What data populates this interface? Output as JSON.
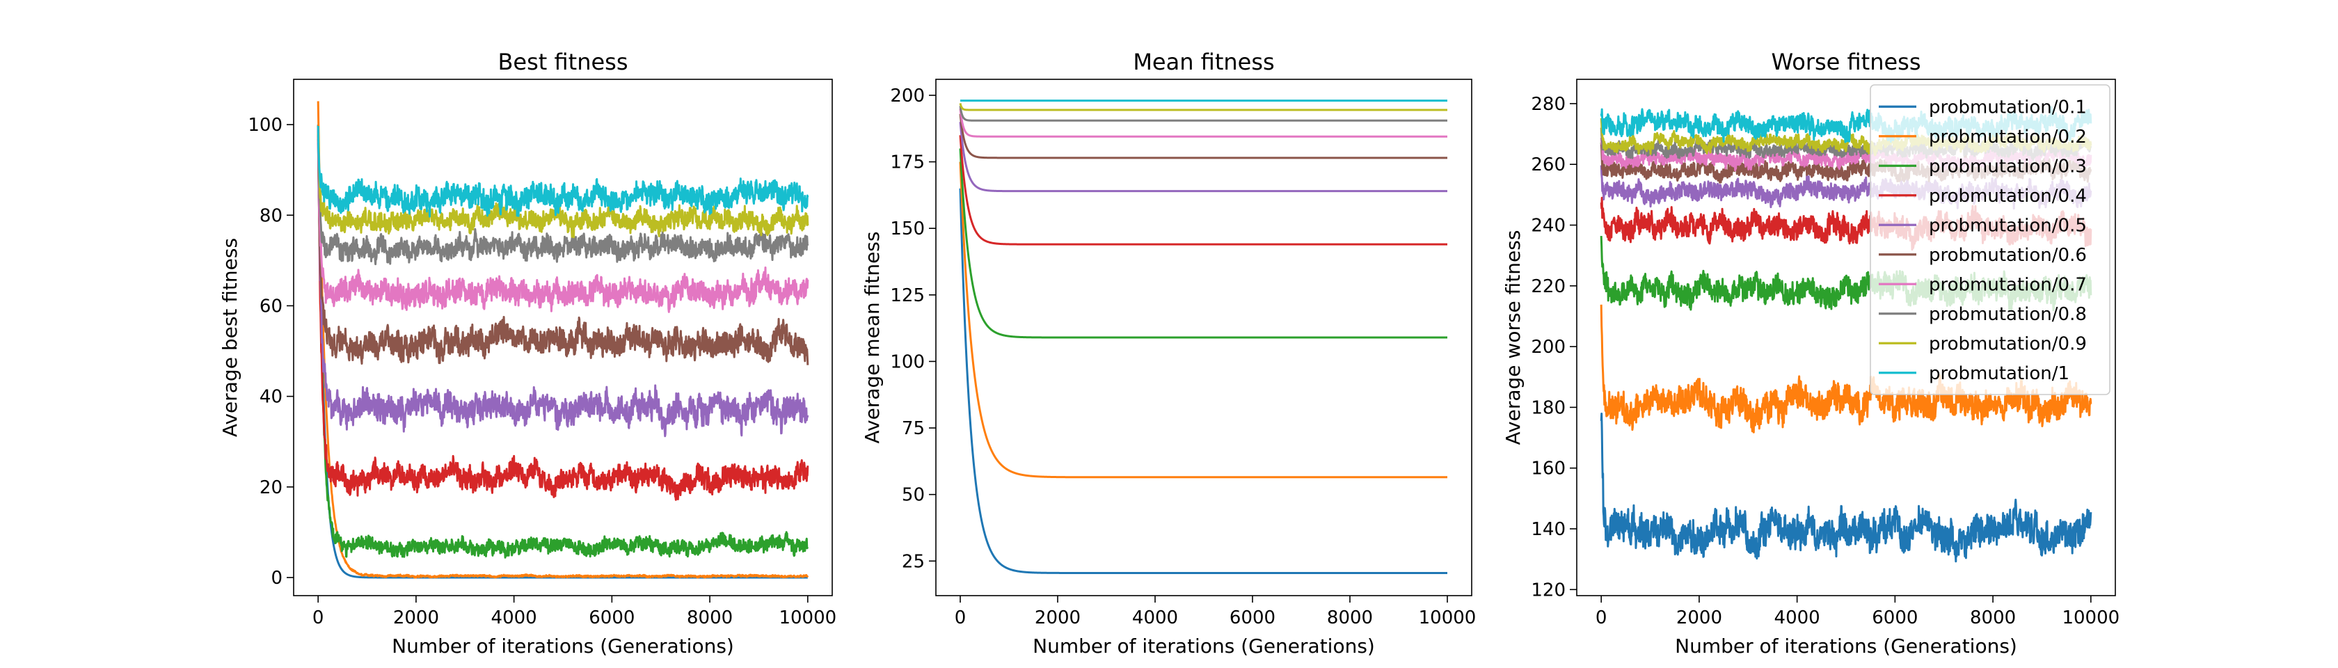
{
  "palette": [
    "#1f77b4",
    "#ff7f0e",
    "#2ca02c",
    "#d62728",
    "#9467bd",
    "#8c564b",
    "#e377c2",
    "#7f7f7f",
    "#bcbd22",
    "#17becf"
  ],
  "chart_data": [
    {
      "type": "line",
      "title": "Best fitness",
      "xlabel": "Number of iterations (Generations)",
      "ylabel": "Average best fitness",
      "xlim": [
        -500,
        10500
      ],
      "ylim": [
        -4,
        110
      ],
      "xticks": [
        0,
        2000,
        4000,
        6000,
        8000,
        10000
      ],
      "yticks": [
        0,
        20,
        40,
        60,
        80,
        100
      ],
      "legend": "none",
      "grid": false,
      "series": [
        {
          "name": "probmutation/0.1",
          "start": 100,
          "plateau": 0,
          "tau": 120,
          "noise": 0
        },
        {
          "name": "probmutation/0.2",
          "start": 105,
          "plateau": 0.3,
          "tau": 160,
          "noise": 0.2
        },
        {
          "name": "probmutation/0.3",
          "start": 100,
          "plateau": 7,
          "tau": 90,
          "noise": 1.6
        },
        {
          "name": "probmutation/0.4",
          "start": 98,
          "plateau": 22,
          "tau": 70,
          "noise": 2.5
        },
        {
          "name": "probmutation/0.5",
          "start": 98,
          "plateau": 37,
          "tau": 60,
          "noise": 3.2
        },
        {
          "name": "probmutation/0.6",
          "start": 98,
          "plateau": 52,
          "tau": 50,
          "noise": 3.0
        },
        {
          "name": "probmutation/0.7",
          "start": 98,
          "plateau": 63,
          "tau": 45,
          "noise": 2.8
        },
        {
          "name": "probmutation/0.8",
          "start": 98,
          "plateau": 73,
          "tau": 40,
          "noise": 2.4
        },
        {
          "name": "probmutation/0.9",
          "start": 98,
          "plateau": 79,
          "tau": 35,
          "noise": 2.2
        },
        {
          "name": "probmutation/1",
          "start": 98,
          "plateau": 84,
          "tau": 30,
          "noise": 2.6
        }
      ]
    },
    {
      "type": "line",
      "title": "Mean fitness",
      "xlabel": "Number of iterations (Generations)",
      "ylabel": "Average mean fitness",
      "xlim": [
        -500,
        10500
      ],
      "ylim": [
        12,
        206
      ],
      "xticks": [
        0,
        2000,
        4000,
        6000,
        8000,
        10000
      ],
      "yticks": [
        25,
        50,
        75,
        100,
        125,
        150,
        175,
        200
      ],
      "legend": "none",
      "grid": false,
      "series": [
        {
          "name": "probmutation/0.1",
          "start": 165,
          "plateau": 20.5,
          "tau": 220,
          "noise": 0
        },
        {
          "name": "probmutation/0.2",
          "start": 175,
          "plateau": 56.5,
          "tau": 260,
          "noise": 0
        },
        {
          "name": "probmutation/0.3",
          "start": 180,
          "plateau": 109,
          "tau": 200,
          "noise": 0
        },
        {
          "name": "probmutation/0.4",
          "start": 185,
          "plateau": 144,
          "tau": 150,
          "noise": 0
        },
        {
          "name": "probmutation/0.5",
          "start": 190,
          "plateau": 164,
          "tau": 120,
          "noise": 0
        },
        {
          "name": "probmutation/0.6",
          "start": 193,
          "plateau": 176.5,
          "tau": 90,
          "noise": 0
        },
        {
          "name": "probmutation/0.7",
          "start": 195,
          "plateau": 184.5,
          "tau": 60,
          "noise": 0
        },
        {
          "name": "probmutation/0.8",
          "start": 196,
          "plateau": 190.5,
          "tau": 40,
          "noise": 0
        },
        {
          "name": "probmutation/0.9",
          "start": 197,
          "plateau": 194.5,
          "tau": 30,
          "noise": 0
        },
        {
          "name": "probmutation/1",
          "start": 198,
          "plateau": 198,
          "tau": 20,
          "noise": 0
        }
      ]
    },
    {
      "type": "line",
      "title": "Worse fitness",
      "xlabel": "Number of iterations (Generations)",
      "ylabel": "Average worse fitness",
      "xlim": [
        -500,
        10500
      ],
      "ylim": [
        118,
        288
      ],
      "xticks": [
        0,
        2000,
        4000,
        6000,
        8000,
        10000
      ],
      "yticks": [
        120,
        140,
        160,
        180,
        200,
        220,
        240,
        260,
        280
      ],
      "legend": "upper right",
      "grid": false,
      "series": [
        {
          "name": "probmutation/0.1",
          "start": 180,
          "plateau": 139,
          "tau": 40,
          "noise": 5.5
        },
        {
          "name": "probmutation/0.2",
          "start": 215,
          "plateau": 181,
          "tau": 40,
          "noise": 5.0
        },
        {
          "name": "probmutation/0.3",
          "start": 235,
          "plateau": 219,
          "tau": 35,
          "noise": 4.2
        },
        {
          "name": "probmutation/0.4",
          "start": 250,
          "plateau": 239,
          "tau": 30,
          "noise": 3.8
        },
        {
          "name": "probmutation/0.5",
          "start": 260,
          "plateau": 251,
          "tau": 25,
          "noise": 3.0
        },
        {
          "name": "probmutation/0.6",
          "start": 266,
          "plateau": 258,
          "tau": 20,
          "noise": 2.6
        },
        {
          "name": "probmutation/0.7",
          "start": 270,
          "plateau": 262,
          "tau": 20,
          "noise": 2.3
        },
        {
          "name": "probmutation/0.8",
          "start": 272,
          "plateau": 265,
          "tau": 20,
          "noise": 2.2
        },
        {
          "name": "probmutation/0.9",
          "start": 274,
          "plateau": 267,
          "tau": 20,
          "noise": 2.0
        },
        {
          "name": "probmutation/1",
          "start": 278,
          "plateau": 273,
          "tau": 20,
          "noise": 3.2
        }
      ]
    }
  ]
}
